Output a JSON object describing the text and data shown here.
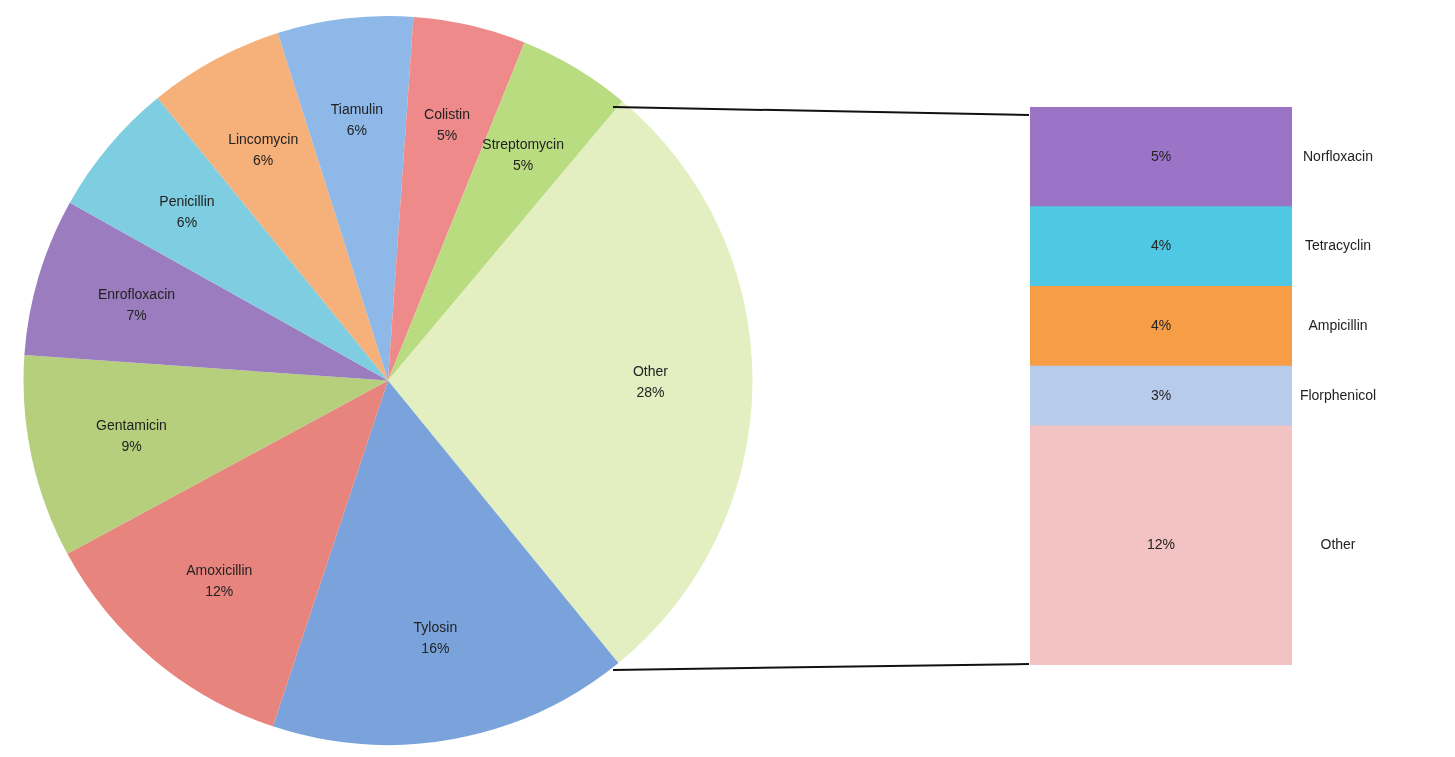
{
  "chart_data": [
    {
      "type": "pie",
      "categories": [
        "Other",
        "Tylosin",
        "Amoxicillin",
        "Gentamicin",
        "Enrofloxacin",
        "Penicillin",
        "Lincomycin",
        "Tiamulin",
        "Colistin",
        "Streptomycin"
      ],
      "values": [
        28,
        16,
        12,
        9,
        7,
        6,
        6,
        6,
        5,
        5
      ],
      "value_labels": [
        "28%",
        "16%",
        "12%",
        "9%",
        "7%",
        "6%",
        "6%",
        "6%",
        "5%",
        "5%"
      ],
      "colors": [
        "#e3efc0",
        "#7aa3dc",
        "#e8847e",
        "#b5cf7d",
        "#9a7cbf",
        "#7fcde0",
        "#f6b07a",
        "#8db8e8",
        "#ee8a8a",
        "#b9dc80"
      ],
      "legend": false
    },
    {
      "type": "bar",
      "stacked": true,
      "categories": [
        null
      ],
      "legend": false,
      "series": [
        {
          "name": "Other",
          "color": "#f3c3c3",
          "values": [
            12
          ],
          "value_labels": [
            "12%"
          ]
        },
        {
          "name": "Florphenicol",
          "color": "#b6ccea",
          "values": [
            3
          ],
          "value_labels": [
            "3%"
          ]
        },
        {
          "name": "Ampicillin",
          "color": "#f79d45",
          "values": [
            4
          ],
          "value_labels": [
            "4%"
          ]
        },
        {
          "name": "Tetracyclin",
          "color": "#4fc9e3",
          "values": [
            4
          ],
          "value_labels": [
            "4%"
          ]
        },
        {
          "name": "Norfloxacin",
          "color": "#9b74c8",
          "values": [
            5
          ],
          "value_labels": [
            "5%"
          ]
        }
      ]
    }
  ]
}
